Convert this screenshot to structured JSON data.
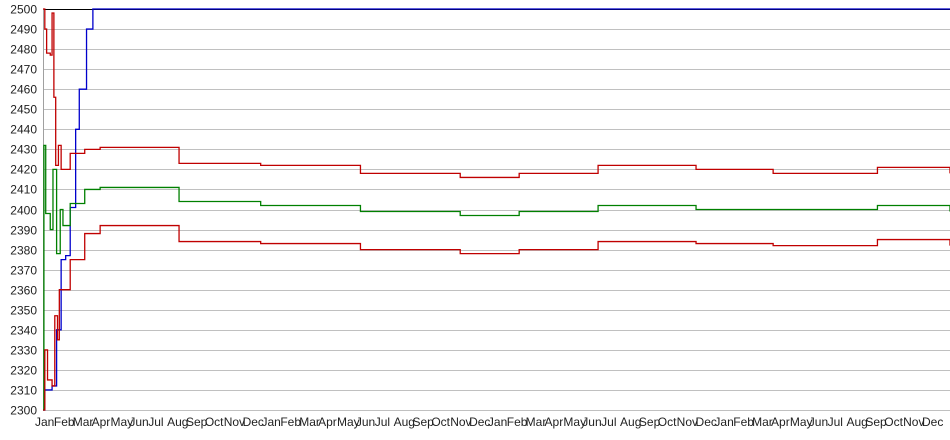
{
  "chart_data": {
    "type": "line",
    "title": "",
    "xlabel": "",
    "ylabel": "",
    "ylim": [
      2300,
      2500
    ],
    "yticks": [
      2300,
      2310,
      2320,
      2330,
      2340,
      2350,
      2360,
      2370,
      2380,
      2390,
      2400,
      2410,
      2420,
      2430,
      2440,
      2450,
      2460,
      2470,
      2480,
      2490,
      2500
    ],
    "xlim": [
      0,
      1000
    ],
    "x_tick_labels_note_free": true,
    "xticklabels": [
      "Jan",
      "Feb",
      "Mar",
      "Apr",
      "May",
      "Jun",
      "Jul",
      "Aug",
      "Sep",
      "Oct",
      "Nov",
      "Dec",
      "Jan",
      "Feb",
      "Mar",
      "Apr",
      "May",
      "Jun",
      "Jul",
      "Aug",
      "Sep",
      "Oct",
      "Nov",
      "Dec",
      "Jan",
      "Feb",
      "Mar",
      "Apr",
      "May",
      "Jun",
      "Jul",
      "Aug",
      "Sep",
      "Oct",
      "Nov",
      "Dec",
      "Jan",
      "Feb",
      "Mar",
      "Apr",
      "May",
      "Jun",
      "Jul",
      "Aug",
      "Sep",
      "Oct",
      "Nov",
      "Dec"
    ],
    "grid": true,
    "legend": "none",
    "series": [
      {
        "color": "#0000cc",
        "points": [
          [
            0,
            2300
          ],
          [
            2,
            2310
          ],
          [
            10,
            2312
          ],
          [
            15,
            2340
          ],
          [
            20,
            2375
          ],
          [
            25,
            2377
          ],
          [
            30,
            2401
          ],
          [
            36,
            2440
          ],
          [
            40,
            2460
          ],
          [
            48,
            2490
          ],
          [
            55,
            2500
          ],
          [
            1000,
            2500
          ]
        ]
      },
      {
        "color": "#c00000",
        "points": [
          [
            0,
            2500
          ],
          [
            2,
            2490
          ],
          [
            4,
            2478
          ],
          [
            8,
            2477
          ],
          [
            10,
            2498
          ],
          [
            12,
            2456
          ],
          [
            14,
            2422
          ],
          [
            17,
            2432
          ],
          [
            20,
            2420
          ],
          [
            30,
            2428
          ],
          [
            46,
            2430
          ],
          [
            63,
            2431
          ],
          [
            150,
            2423
          ],
          [
            240,
            2422
          ],
          [
            350,
            2418
          ],
          [
            460,
            2416
          ],
          [
            525,
            2418
          ],
          [
            612,
            2422
          ],
          [
            720,
            2420
          ],
          [
            805,
            2418
          ],
          [
            920,
            2421
          ],
          [
            1000,
            2418
          ]
        ]
      },
      {
        "color": "#008000",
        "points": [
          [
            0,
            2300
          ],
          [
            1,
            2432
          ],
          [
            3,
            2398
          ],
          [
            8,
            2390
          ],
          [
            11,
            2420
          ],
          [
            15,
            2378
          ],
          [
            19,
            2400
          ],
          [
            22,
            2392
          ],
          [
            30,
            2403
          ],
          [
            46,
            2410
          ],
          [
            63,
            2411
          ],
          [
            150,
            2404
          ],
          [
            240,
            2402
          ],
          [
            350,
            2399
          ],
          [
            460,
            2397
          ],
          [
            525,
            2399
          ],
          [
            612,
            2402
          ],
          [
            720,
            2400
          ],
          [
            805,
            2400
          ],
          [
            920,
            2402
          ],
          [
            1000,
            2399
          ]
        ]
      },
      {
        "color": "#c00000",
        "points": [
          [
            0,
            2300
          ],
          [
            2,
            2330
          ],
          [
            5,
            2315
          ],
          [
            10,
            2312
          ],
          [
            13,
            2347
          ],
          [
            16,
            2335
          ],
          [
            18,
            2360
          ],
          [
            22,
            2360
          ],
          [
            30,
            2375
          ],
          [
            46,
            2388
          ],
          [
            63,
            2392
          ],
          [
            150,
            2384
          ],
          [
            240,
            2383
          ],
          [
            350,
            2380
          ],
          [
            460,
            2378
          ],
          [
            525,
            2380
          ],
          [
            612,
            2384
          ],
          [
            720,
            2383
          ],
          [
            805,
            2382
          ],
          [
            920,
            2385
          ],
          [
            1000,
            2382
          ]
        ]
      }
    ]
  }
}
